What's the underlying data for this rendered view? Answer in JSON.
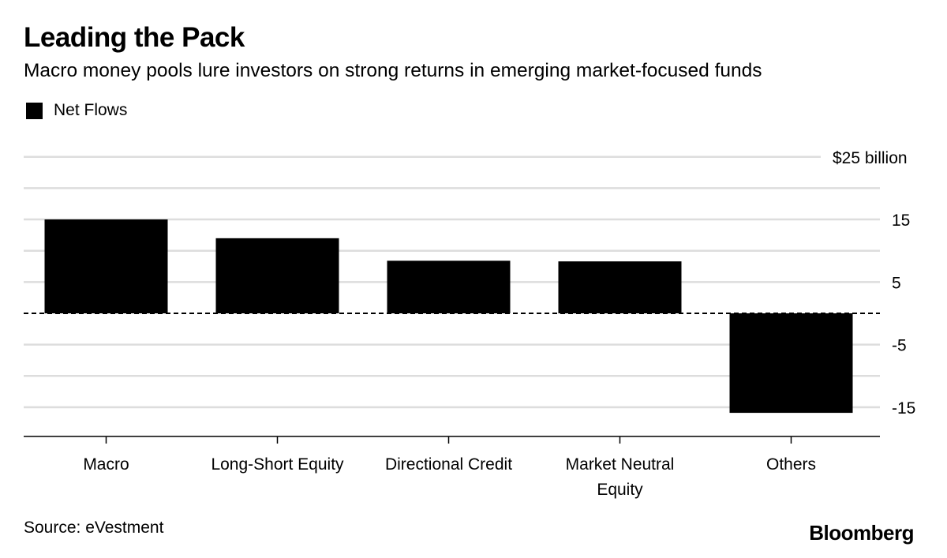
{
  "header": {
    "title": "Leading the Pack",
    "subtitle": "Macro money pools lure investors on strong returns in emerging market-focused funds"
  },
  "legend": {
    "items": [
      {
        "label": "Net Flows",
        "color": "#000000"
      }
    ]
  },
  "footer": {
    "source": "Source: eVestment",
    "brand": "Bloomberg"
  },
  "colors": {
    "bar": "#000000",
    "gridline": "#dddddd",
    "axis": "#000000",
    "text": "#000000"
  },
  "chart_data": {
    "type": "bar",
    "title": "Leading the Pack",
    "subtitle": "Macro money pools lure investors on strong returns in emerging market-focused funds",
    "categories": [
      [
        "Macro"
      ],
      [
        "Long-Short Equity"
      ],
      [
        "Directional Credit"
      ],
      [
        "Market Neutral",
        "Equity"
      ],
      [
        "Others"
      ]
    ],
    "series": [
      {
        "name": "Net Flows",
        "values": [
          15.0,
          12.0,
          8.4,
          8.3,
          -15.9
        ]
      }
    ],
    "xlabel": "",
    "ylabel": "$ billion",
    "ylim": [
      -19.5,
      25
    ],
    "yticks": [
      {
        "value": 25,
        "label": "$25 billion"
      },
      {
        "value": 20,
        "label": ""
      },
      {
        "value": 15,
        "label": "15"
      },
      {
        "value": 10,
        "label": ""
      },
      {
        "value": 5,
        "label": "5"
      },
      {
        "value": 0,
        "label": ""
      },
      {
        "value": -5,
        "label": "-5"
      },
      {
        "value": -10,
        "label": ""
      },
      {
        "value": -15,
        "label": "-15"
      }
    ],
    "zero_line": "dashed",
    "grid": true,
    "y_axis_side": "right",
    "legend_position": "top-left",
    "source": "eVestment"
  }
}
